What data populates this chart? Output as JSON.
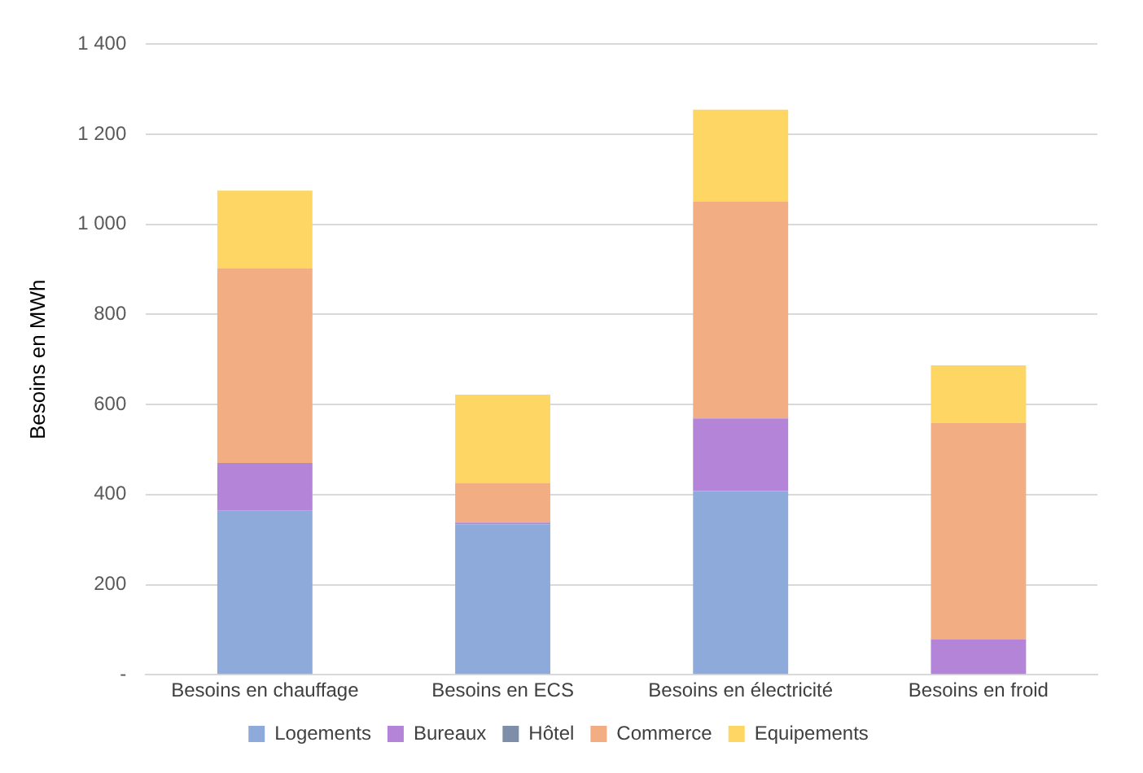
{
  "chart_data": {
    "type": "bar",
    "stacked": true,
    "ylabel": "Besoins en MWh",
    "categories": [
      "Besoins en chauffage",
      "Besoins en ECS",
      "Besoins en électricité",
      "Besoins en froid"
    ],
    "series": [
      {
        "name": "Logements",
        "color": "#8eaadb",
        "values": [
          364,
          334,
          408,
          0
        ]
      },
      {
        "name": "Bureaux",
        "color": "#b484d8",
        "values": [
          106,
          4,
          161,
          79
        ]
      },
      {
        "name": "Hôtel",
        "color": "#7f8ea8",
        "values": [
          0,
          0,
          0,
          0
        ]
      },
      {
        "name": "Commerce",
        "color": "#f2ae82",
        "values": [
          432,
          87,
          482,
          480
        ]
      },
      {
        "name": "Equipements",
        "color": "#fdd663",
        "values": [
          173,
          197,
          204,
          128
        ]
      }
    ],
    "ylim": [
      0,
      1400
    ],
    "yticks": [
      {
        "value": 0,
        "label": "-"
      },
      200,
      400,
      600,
      800,
      {
        "value": 1000,
        "label": "1 000"
      },
      {
        "value": 1200,
        "label": "1 200"
      },
      {
        "value": 1400,
        "label": "1 400"
      }
    ],
    "grid": "y",
    "legend": "bottom"
  }
}
